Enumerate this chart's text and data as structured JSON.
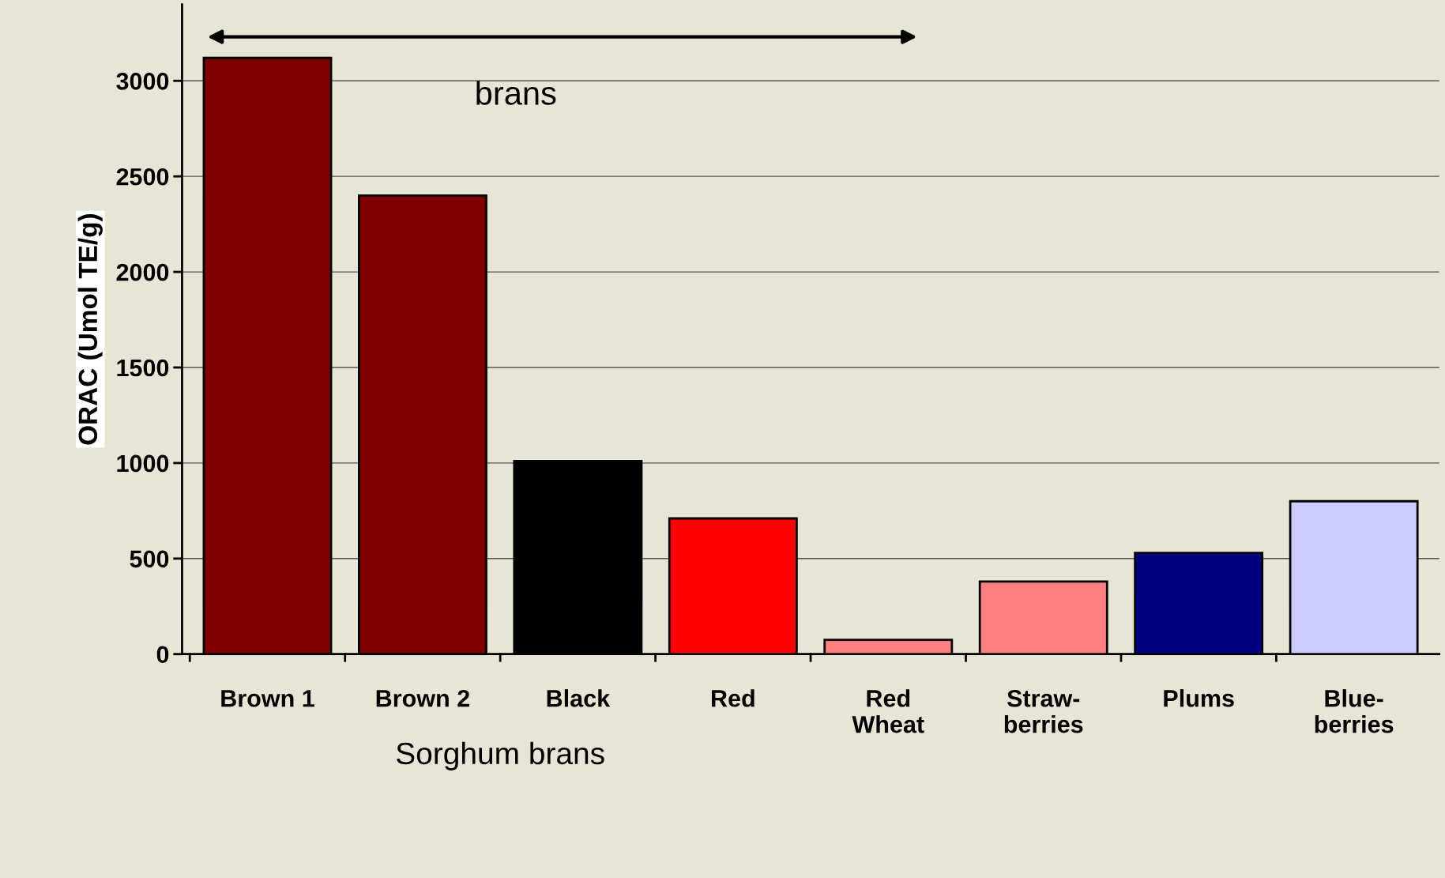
{
  "chart_data": {
    "type": "bar",
    "categories": [
      "Brown 1",
      "Brown 2",
      "Black",
      "Red",
      "Red\nWheat",
      "Straw-\nberries",
      "Plums",
      "Blue-\nberries"
    ],
    "values": [
      3120,
      2400,
      1010,
      710,
      75,
      380,
      530,
      800
    ],
    "colors": [
      "#7f0000",
      "#7f0000",
      "#000000",
      "#ff0000",
      "#ff8080",
      "#ff8080",
      "#000080",
      "#ccccff"
    ],
    "xlabel": "Sorghum brans",
    "ylabel": "ORAC (Umol TE/g)",
    "annotations": [
      "brans"
    ],
    "ylim": [
      0,
      3400
    ],
    "yticks": [
      0,
      500,
      1000,
      1500,
      2000,
      2500,
      3000
    ],
    "grid": "y",
    "legend": false
  }
}
